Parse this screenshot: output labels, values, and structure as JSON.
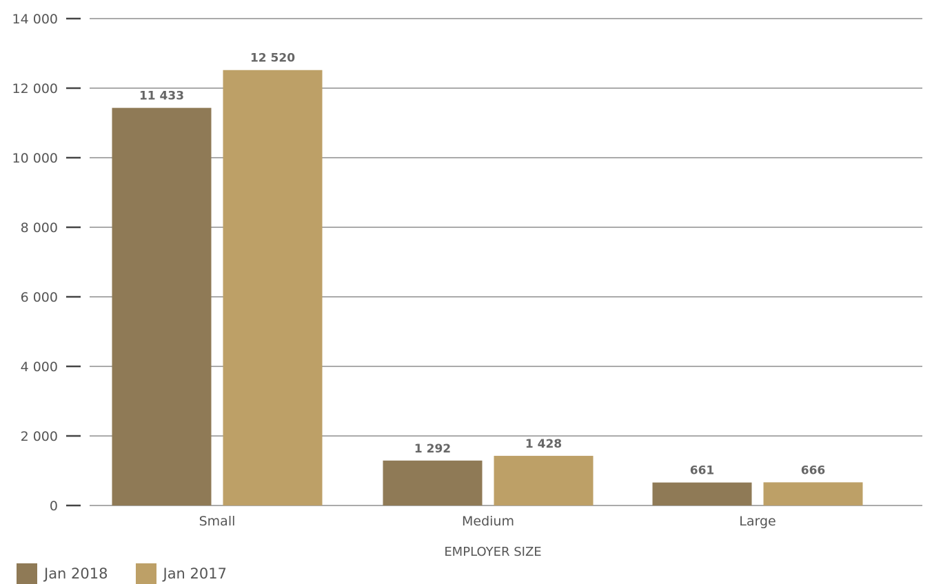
{
  "chart_data": {
    "type": "bar",
    "categories": [
      "Small",
      "Medium",
      "Large"
    ],
    "series": [
      {
        "name": "Jan 2018",
        "values": [
          11433,
          1292,
          661
        ],
        "labels": [
          "11 433",
          "1 292",
          "661"
        ],
        "color": "#8f7a56"
      },
      {
        "name": "Jan 2017",
        "values": [
          12520,
          1428,
          666
        ],
        "labels": [
          "12 520",
          "1 428",
          "666"
        ],
        "color": "#bda067"
      }
    ],
    "xlabel": "EMPLOYER SIZE",
    "ylabel": "",
    "ylim": [
      0,
      14000
    ],
    "yticks": [
      0,
      2000,
      4000,
      6000,
      8000,
      10000,
      12000,
      14000
    ],
    "ytick_labels": [
      "0",
      "2 000",
      "4 000",
      "6 000",
      "8 000",
      "10 000",
      "12 000",
      "14 000"
    ],
    "grid": true,
    "legend_position": "bottom-left"
  }
}
